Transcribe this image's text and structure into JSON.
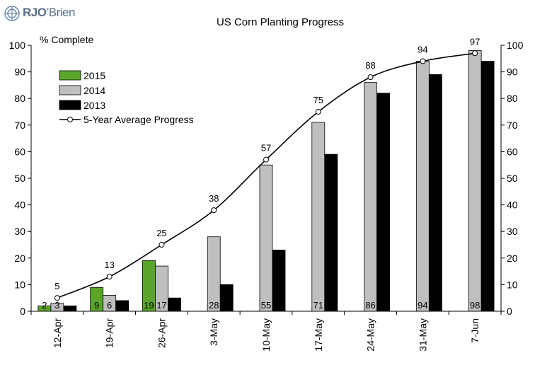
{
  "logo": {
    "bold": "RJO",
    "thin": "’Brien"
  },
  "chart_data": {
    "type": "bar",
    "title": "US Corn Planting Progress",
    "ylabel": "% Complete",
    "xlabel": "",
    "ylim": [
      0,
      100
    ],
    "yticks": [
      0,
      10,
      20,
      30,
      40,
      50,
      60,
      70,
      80,
      90,
      100
    ],
    "categories": [
      "12-Apr",
      "19-Apr",
      "26-Apr",
      "3-May",
      "10-May",
      "17-May",
      "24-May",
      "31-May",
      "7-Jun"
    ],
    "series": [
      {
        "name": "2015",
        "color": "#5aa52a",
        "values": [
          2,
          9,
          19,
          null,
          null,
          null,
          null,
          null,
          null
        ],
        "labels": [
          "2",
          "9",
          "19",
          "",
          "",
          "",
          "",
          "",
          ""
        ]
      },
      {
        "name": "2014",
        "color": "#bfbfbf",
        "values": [
          3,
          6,
          17,
          28,
          55,
          71,
          86,
          94,
          98
        ],
        "labels": [
          "3",
          "6",
          "17",
          "28",
          "55",
          "71",
          "86",
          "94",
          "98"
        ]
      },
      {
        "name": "2013",
        "color": "#000000",
        "values": [
          2,
          4,
          5,
          10,
          23,
          59,
          82,
          89,
          94
        ],
        "labels": [
          "",
          "",
          "",
          "",
          "",
          "",
          "",
          "",
          ""
        ]
      }
    ],
    "line": {
      "name": "5-Year Average Progress",
      "color": "#000000",
      "values": [
        5,
        13,
        25,
        38,
        57,
        75,
        88,
        94,
        97
      ],
      "labels": [
        "5",
        "13",
        "25",
        "38",
        "57",
        "75",
        "88",
        "94",
        "97"
      ]
    },
    "legend_position": "top-left",
    "grid": false,
    "secondary_axis": true
  }
}
